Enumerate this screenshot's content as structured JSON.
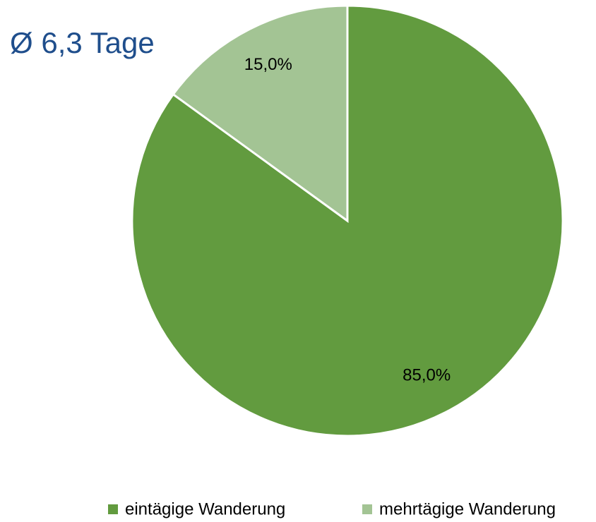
{
  "chart_data": {
    "type": "pie",
    "annotation": "Ø 6,3 Tage",
    "categories": [
      "eintägige Wanderung",
      "mehrtägige Wanderung"
    ],
    "values": [
      85,
      15
    ],
    "value_labels": [
      "85,0%",
      "15,0%"
    ],
    "colors": [
      "#629b3f",
      "#a3c494"
    ],
    "legend": "bottom"
  }
}
